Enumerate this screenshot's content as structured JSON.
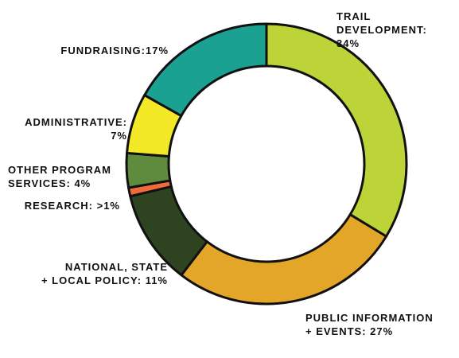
{
  "chart_data": {
    "type": "pie",
    "donut": true,
    "start_angle_deg": 0,
    "slices": [
      {
        "label": "TRAIL\nDEVELOPMENT:\n34%",
        "value": 34,
        "color": "#bcd437"
      },
      {
        "label": "PUBLIC INFORMATION\n+ EVENTS: 27%",
        "value": 27,
        "color": "#e3a629"
      },
      {
        "label": "NATIONAL, STATE\n+ LOCAL POLICY: 11%",
        "value": 11,
        "color": "#2e4320"
      },
      {
        "label": "RESEARCH:  >1%",
        "value": 1,
        "color": "#f06b3c"
      },
      {
        "label": "OTHER PROGRAM\nSERVICES: 4%",
        "value": 4,
        "color": "#5f8b3c"
      },
      {
        "label": "ADMINISTRATIVE:\n7%",
        "value": 7,
        "color": "#f3e926"
      },
      {
        "label": "FUNDRAISING:17%",
        "value": 17,
        "color": "#1ba191"
      }
    ],
    "legend": "none"
  }
}
